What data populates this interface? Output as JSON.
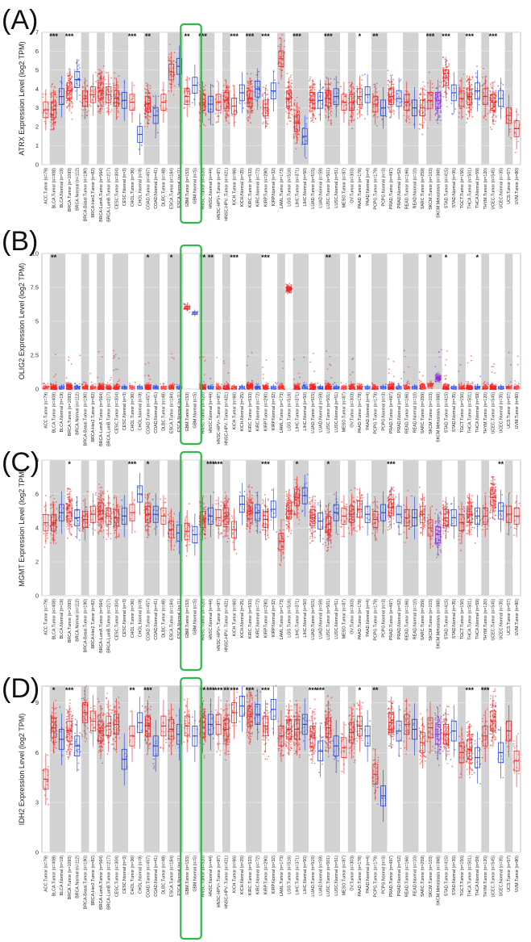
{
  "colors": {
    "tumor": "#ee2222",
    "normal": "#1f3fe0",
    "metastasis": "#8a2be2",
    "shade": "#d2d2d2",
    "highlight": "#2fb84a"
  },
  "categories": [
    "ACC.Tumor (n=79)",
    "BLCA.Tumor (n=408)",
    "BLCA.Normal (n=19)",
    "BRCA.Tumor (n=1093)",
    "BRCA.Normal (n=112)",
    "BRCA-Basal.Tumor (n=190)",
    "BRCA-Her2.Tumor (n=82)",
    "BRCA-LumA.Tumor (n=564)",
    "BRCA-LumB.Tumor (n=217)",
    "CESC.Tumor (n=304)",
    "CESC.Normal (n=3)",
    "CHOL.Tumor (n=36)",
    "CHOL.Normal (n=9)",
    "COAD.Tumor (n=457)",
    "COAD.Normal (n=41)",
    "DLBC.Tumor (n=48)",
    "ESCA.Tumor (n=184)",
    "ESCA.Normal (n=11)",
    "GBM.Tumor (n=153)",
    "GBM.Normal (n=5)",
    "HNSC.Tumor (n=520)",
    "HNSC.Normal (n=44)",
    "HNSC-HPV+.Tumor (n=97)",
    "HNSC-HPV-.Tumor (n=421)",
    "KICH.Tumor (n=66)",
    "KICH.Normal (n=25)",
    "KIRC.Tumor (n=533)",
    "KIRC.Normal (n=72)",
    "KIRP.Tumor (n=290)",
    "KIRP.Normal (n=32)",
    "LAML.Tumor (n=173)",
    "LGG.Tumor (n=516)",
    "LIHC.Tumor (n=371)",
    "LIHC.Normal (n=50)",
    "LUAD.Tumor (n=515)",
    "LUAD.Normal (n=59)",
    "LUSC.Tumor (n=501)",
    "LUSC.Normal (n=51)",
    "MESO.Tumor (n=87)",
    "OV.Tumor (n=303)",
    "PAAD.Tumor (n=178)",
    "PAAD.Normal (n=4)",
    "PCPG.Tumor (n=179)",
    "PCPG.Normal (n=3)",
    "PRAD.Tumor (n=497)",
    "PRAD.Normal (n=52)",
    "READ.Tumor (n=166)",
    "READ.Normal (n=10)",
    "SARC.Tumor (n=259)",
    "SKCM.Tumor (n=103)",
    "SKCM.Metastasis (n=368)",
    "STAD.Tumor (n=415)",
    "STAD.Normal (n=35)",
    "TGCT.Tumor (n=150)",
    "THCA.Tumor (n=501)",
    "THCA.Normal (n=59)",
    "THYM.Tumor (n=120)",
    "UCEC.Tumor (n=545)",
    "UCEC.Normal (n=35)",
    "UCS.Tumor (n=57)",
    "UVM.Tumor (n=80)"
  ],
  "panels": [
    {
      "panel_label": "(A)",
      "chart_data": {
        "type": "box",
        "gene": "ATRX",
        "ylabel": "ATRX Expression Level (log2 TPM)",
        "ylim": [
          0,
          7
        ],
        "yticks": [
          0,
          1,
          2,
          3,
          4,
          5,
          6,
          7
        ],
        "medians": [
          2.9,
          2.9,
          3.6,
          3.9,
          4.5,
          3.5,
          3.7,
          3.9,
          3.7,
          3.5,
          3.4,
          3.3,
          1.6,
          3.2,
          2.6,
          3.3,
          4.9,
          5.2,
          3.6,
          4.2,
          3.3,
          3.2,
          3.3,
          3.4,
          3.1,
          3.8,
          3.5,
          4.0,
          3.0,
          3.9,
          5.6,
          3.5,
          2.2,
          1.5,
          3.4,
          3.4,
          3.5,
          3.6,
          3.3,
          3.3,
          3.6,
          3.7,
          3.2,
          3.0,
          3.6,
          3.5,
          3.3,
          3.0,
          3.0,
          3.4,
          3.4,
          4.6,
          3.8,
          3.5,
          3.6,
          3.9,
          3.6,
          3.3,
          3.5,
          2.6,
          1.9
        ],
        "significance": [
          "",
          "***",
          "",
          "***",
          "",
          "",
          "",
          "",
          "",
          "",
          "",
          "***",
          "",
          "**",
          "",
          "",
          "",
          "",
          "**",
          "",
          "***",
          "",
          "",
          "",
          "***",
          "",
          "***",
          "",
          "***",
          "",
          "",
          "",
          "***",
          "",
          "",
          "",
          "***",
          "",
          "",
          "",
          "*",
          "",
          "**",
          "",
          "",
          "",
          "",
          "",
          "",
          "***",
          "",
          "***",
          "",
          "",
          "***",
          "",
          "",
          "***",
          "",
          "",
          ""
        ]
      }
    },
    {
      "panel_label": "(B)",
      "chart_data": {
        "type": "box",
        "gene": "OLIG2",
        "ylabel": "OLIG2 Expression Level (log2 TPM)",
        "ylim": [
          0,
          10
        ],
        "yticks": [
          0.0,
          2.5,
          5.0,
          7.5,
          10.0
        ],
        "medians": [
          0.1,
          0.1,
          0.1,
          0.15,
          0.1,
          0.1,
          0.1,
          0.1,
          0.1,
          0.1,
          0.1,
          0.1,
          0.1,
          0.1,
          0.1,
          0.1,
          0.1,
          0.1,
          6.0,
          5.6,
          0.1,
          0.1,
          0.1,
          0.1,
          0.1,
          0.1,
          0.2,
          0.1,
          0.1,
          0.1,
          0.1,
          7.4,
          0.1,
          0.1,
          0.1,
          0.1,
          0.1,
          0.1,
          0.1,
          0.1,
          0.1,
          0.1,
          0.1,
          0.1,
          0.1,
          0.1,
          0.1,
          0.1,
          0.2,
          0.3,
          0.8,
          0.1,
          0.1,
          0.1,
          0.1,
          0.1,
          0.1,
          0.1,
          0.1,
          0.1,
          0.1
        ],
        "significance": [
          "",
          "**",
          "",
          "",
          "",
          "",
          "",
          "",
          "",
          "",
          "",
          "",
          "",
          "*",
          "",
          "",
          "*",
          "",
          "",
          "",
          "**",
          "**",
          "",
          "",
          "***",
          "",
          "",
          "",
          "***",
          "",
          "",
          "",
          "",
          "",
          "",
          "",
          "**",
          "",
          "",
          "",
          "*",
          "",
          "",
          "",
          "",
          "",
          "",
          "",
          "",
          "*",
          "",
          "*",
          "",
          "",
          "",
          "*",
          "",
          "",
          "",
          "",
          ""
        ]
      }
    },
    {
      "panel_label": "(C)",
      "chart_data": {
        "type": "box",
        "gene": "MGMT",
        "ylabel": "MGMT Expression Level (log2 TPM)",
        "ylim": [
          0,
          8
        ],
        "yticks": [
          0,
          2,
          4,
          6,
          8
        ],
        "medians": [
          4.3,
          4.3,
          4.9,
          4.9,
          4.6,
          4.5,
          4.8,
          5.0,
          4.7,
          4.6,
          4.7,
          4.9,
          6.0,
          4.8,
          4.8,
          4.7,
          3.9,
          3.7,
          3.8,
          3.6,
          4.5,
          4.7,
          4.6,
          4.7,
          3.9,
          5.4,
          5.0,
          4.9,
          4.5,
          5.1,
          3.2,
          5.0,
          5.8,
          5.9,
          4.6,
          4.4,
          4.2,
          4.9,
          4.7,
          4.8,
          5.1,
          4.8,
          4.5,
          4.9,
          5.2,
          4.8,
          4.6,
          4.6,
          4.8,
          4.0,
          3.6,
          4.6,
          4.6,
          4.3,
          4.8,
          4.7,
          4.7,
          5.8,
          5.0,
          4.8,
          4.7
        ],
        "significance": [
          "",
          "",
          "",
          "*",
          "",
          "",
          "",
          "",
          "",
          "",
          "",
          "***",
          "",
          "*",
          "",
          "",
          "",
          "",
          "",
          "",
          "",
          "***",
          "***",
          "",
          "",
          "",
          "",
          "",
          "***",
          "",
          "",
          "",
          "*",
          "",
          "",
          "",
          "*",
          "",
          "",
          "",
          "",
          "",
          "",
          "",
          "***",
          "",
          "",
          "",
          "",
          "",
          "",
          "",
          "",
          "",
          "",
          "",
          "",
          "",
          "**",
          "",
          ""
        ]
      }
    },
    {
      "panel_label": "(D)",
      "chart_data": {
        "type": "box",
        "gene": "IDH2",
        "ylabel": "IDH2 Expression Level (log2 TPM)",
        "ylim": [
          0,
          10
        ],
        "yticks": [
          0,
          3,
          6,
          9
        ],
        "medians": [
          4.4,
          7.5,
          6.8,
          7.3,
          6.4,
          8.4,
          7.9,
          7.3,
          7.6,
          7.7,
          5.6,
          7.0,
          7.8,
          7.6,
          6.4,
          7.6,
          7.4,
          7.1,
          7.6,
          7.0,
          7.5,
          7.7,
          7.7,
          7.4,
          8.4,
          8.8,
          8.2,
          8.3,
          7.6,
          8.6,
          7.0,
          7.4,
          7.4,
          7.7,
          7.0,
          6.1,
          7.5,
          6.4,
          6.3,
          7.2,
          7.6,
          7.0,
          4.7,
          3.4,
          7.8,
          7.3,
          7.7,
          7.4,
          6.6,
          7.5,
          7.1,
          7.1,
          7.3,
          6.0,
          6.2,
          5.7,
          7.0,
          7.9,
          6.0,
          7.3,
          5.5
        ],
        "significance": [
          "",
          "*",
          "",
          "***",
          "",
          "",
          "",
          "",
          "",
          "",
          "",
          "**",
          "",
          "***",
          "",
          "",
          "",
          "",
          "",
          "",
          "**",
          "***",
          "***",
          "**",
          "***",
          "",
          "***",
          "",
          "***",
          "",
          "",
          "",
          "",
          "",
          "***",
          "***",
          "",
          "",
          "",
          "",
          "*",
          "",
          "**",
          "",
          "",
          "",
          "",
          "",
          "",
          "",
          "",
          "",
          "",
          "",
          "***",
          "",
          "***",
          "",
          "",
          "",
          ""
        ]
      }
    }
  ]
}
